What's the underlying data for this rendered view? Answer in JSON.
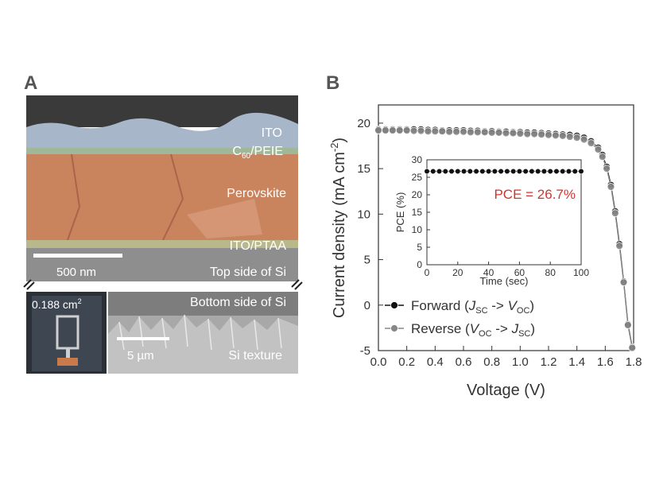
{
  "panel_a": {
    "letter": "A",
    "layers": {
      "ito": "ITO",
      "c60_main": "C",
      "c60_sub": "60",
      "c60_rest": "/PEIE",
      "perovskite": "Perovskite",
      "ito_ptaa": "ITO/PTAA",
      "top_si": "Top side of Si"
    },
    "scale_top": "500 nm",
    "area_main": "0.188 cm",
    "area_sup": "2",
    "bottom_si": "Bottom side of Si",
    "scale_bottom": "5 µm",
    "si_texture": "Si texture",
    "colors": {
      "ito": "#a7b7c9",
      "c60": "#9fb89a",
      "perovskite": "#c9835d",
      "ptaa": "#b9b88a",
      "si": "#8e8e8e",
      "sem_dark": "#3a3a3a"
    }
  },
  "chart_data": [
    {
      "type": "line",
      "panel_letter": "B",
      "xlabel": "Voltage (V)",
      "ylabel_main": "Current density (mA cm",
      "ylabel_sup": "-2",
      "ylabel_end": ")",
      "xlim": [
        0.0,
        1.8
      ],
      "ylim": [
        -5,
        22
      ],
      "xticks": [
        "0.0",
        "0.2",
        "0.4",
        "0.6",
        "0.8",
        "1.0",
        "1.2",
        "1.4",
        "1.6",
        "1.8"
      ],
      "yticks": [
        "-5",
        "0",
        "5",
        "10",
        "15",
        "20"
      ],
      "legend_position": "bottom-left",
      "series": [
        {
          "name": "Forward",
          "legend_main": "Forward (",
          "legend_a": "J",
          "legend_a_sub": "SC",
          "legend_arrow": " -> ",
          "legend_b": "V",
          "legend_b_sub": "OC",
          "legend_end": ")",
          "color": "#111111",
          "x": [
            0.0,
            0.05,
            0.1,
            0.15,
            0.2,
            0.25,
            0.3,
            0.35,
            0.4,
            0.45,
            0.5,
            0.55,
            0.6,
            0.65,
            0.7,
            0.75,
            0.8,
            0.85,
            0.9,
            0.95,
            1.0,
            1.05,
            1.1,
            1.15,
            1.2,
            1.25,
            1.3,
            1.35,
            1.4,
            1.45,
            1.5,
            1.55,
            1.58,
            1.61,
            1.64,
            1.67,
            1.7,
            1.73,
            1.76,
            1.79
          ],
          "y": [
            19.3,
            19.3,
            19.3,
            19.3,
            19.3,
            19.3,
            19.3,
            19.25,
            19.25,
            19.2,
            19.2,
            19.2,
            19.2,
            19.15,
            19.15,
            19.1,
            19.1,
            19.05,
            19.05,
            19.0,
            19.0,
            18.95,
            18.95,
            18.9,
            18.85,
            18.8,
            18.75,
            18.7,
            18.6,
            18.4,
            18.0,
            17.3,
            16.5,
            15.2,
            13.2,
            10.3,
            6.7,
            2.6,
            -2.1,
            -4.6
          ]
        },
        {
          "name": "Reverse",
          "legend_main": "Reverse (",
          "legend_a": "V",
          "legend_a_sub": "OC",
          "legend_arrow": " -> ",
          "legend_b": "J",
          "legend_b_sub": "SC",
          "legend_end": ")",
          "color": "#888888",
          "x": [
            0.0,
            0.05,
            0.1,
            0.15,
            0.2,
            0.25,
            0.3,
            0.35,
            0.4,
            0.45,
            0.5,
            0.55,
            0.6,
            0.65,
            0.7,
            0.75,
            0.8,
            0.85,
            0.9,
            0.95,
            1.0,
            1.05,
            1.1,
            1.15,
            1.2,
            1.25,
            1.3,
            1.35,
            1.4,
            1.45,
            1.5,
            1.55,
            1.58,
            1.61,
            1.64,
            1.67,
            1.7,
            1.73,
            1.76,
            1.79
          ],
          "y": [
            19.2,
            19.2,
            19.2,
            19.2,
            19.2,
            19.15,
            19.15,
            19.1,
            19.1,
            19.1,
            19.05,
            19.05,
            19.05,
            19.0,
            19.0,
            19.0,
            18.95,
            18.95,
            18.9,
            18.9,
            18.85,
            18.8,
            18.8,
            18.75,
            18.7,
            18.65,
            18.6,
            18.5,
            18.4,
            18.2,
            17.8,
            17.1,
            16.3,
            15.0,
            13.0,
            10.1,
            6.5,
            2.5,
            -2.2,
            -4.7
          ]
        }
      ]
    },
    {
      "type": "line",
      "role": "inset",
      "xlabel": "Time (sec)",
      "ylabel": "PCE (%)",
      "xlim": [
        0,
        100
      ],
      "ylim": [
        0,
        30
      ],
      "xticks": [
        "0",
        "20",
        "40",
        "60",
        "80",
        "100"
      ],
      "yticks": [
        "0",
        "5",
        "10",
        "15",
        "20",
        "25",
        "30"
      ],
      "annotation": "PCE = 26.7%",
      "annotation_color": "#d0332f",
      "series": [
        {
          "color": "#111111",
          "x": [
            0,
            4,
            8,
            12,
            16,
            20,
            24,
            28,
            32,
            36,
            40,
            44,
            48,
            52,
            56,
            60,
            64,
            68,
            72,
            76,
            80,
            84,
            88,
            92,
            96,
            100
          ],
          "y": [
            26.7,
            26.7,
            26.7,
            26.7,
            26.7,
            26.7,
            26.7,
            26.7,
            26.7,
            26.7,
            26.7,
            26.7,
            26.7,
            26.7,
            26.7,
            26.7,
            26.7,
            26.7,
            26.7,
            26.7,
            26.7,
            26.7,
            26.7,
            26.7,
            26.7,
            26.7
          ]
        }
      ]
    }
  ]
}
